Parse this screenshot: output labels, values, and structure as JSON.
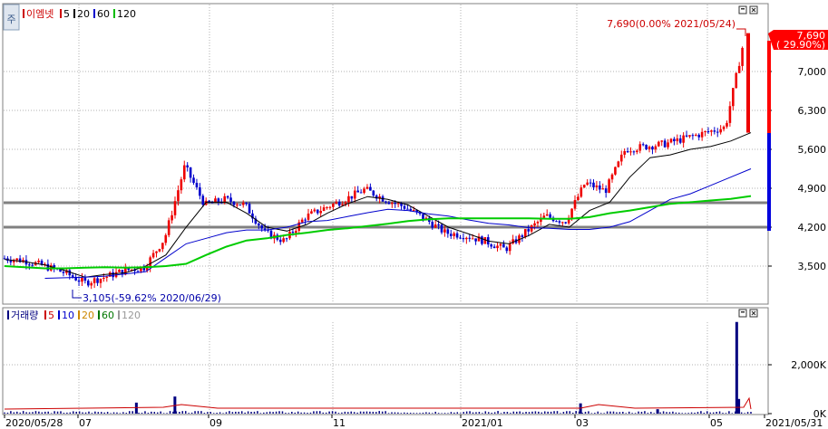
{
  "price_panel": {
    "legend": [
      {
        "label": "이엠넷",
        "color": "#cc0000"
      },
      {
        "label": "5",
        "color": "#cc0000"
      },
      {
        "label": "20",
        "color": "#000000"
      },
      {
        "label": "60",
        "color": "#0000cc"
      },
      {
        "label": "120",
        "color": "#00bb00"
      }
    ],
    "annotation_high": "7,690(0.00% 2021/05/24)",
    "annotation_low": "3,105(-59.62% 2020/06/29)",
    "current_price": "7,690",
    "current_change": "( 29.90%)",
    "y_ticks": [
      "7,000",
      "6,300",
      "5,600",
      "4,900",
      "4,200",
      "3,500"
    ],
    "toggle_icon_label": "주"
  },
  "volume_panel": {
    "legend": [
      {
        "label": "거래량",
        "color": "#000080"
      },
      {
        "label": "5",
        "color": "#cc0000"
      },
      {
        "label": "10",
        "color": "#0000cc"
      },
      {
        "label": "20",
        "color": "#cc8800"
      },
      {
        "label": "60",
        "color": "#007700"
      },
      {
        "label": "120",
        "color": "#999999"
      }
    ],
    "y_ticks": [
      "2,000K",
      "0K"
    ]
  },
  "x_axis": {
    "labels": [
      "2020/05/28",
      "07",
      "09",
      "11",
      "2021/01",
      "03",
      "05",
      "2021/05/31"
    ]
  },
  "chart_data": [
    {
      "type": "candlestick",
      "title": "이엠넷",
      "ylim": [
        3000,
        8000
      ],
      "x_range": [
        "2020/05/28",
        "2021/05/31"
      ],
      "support_resistance_lines": [
        4640,
        4200
      ],
      "series": [
        {
          "name": "5",
          "color": "#cc0000",
          "values": [
            3640,
            3600,
            3500,
            3380,
            3200,
            3300,
            3420,
            3480,
            4000,
            5300,
            4600,
            4700,
            4600,
            4100,
            3950,
            4380,
            4550,
            4700,
            4880,
            4700,
            4560,
            4350,
            4100,
            4050,
            3950,
            3800,
            4100,
            4400,
            4300,
            5000,
            4850,
            5600,
            5650,
            5700,
            5800,
            5900,
            6000,
            7690
          ]
        },
        {
          "name": "20",
          "color": "#000000",
          "values": [
            3620,
            3580,
            3520,
            3420,
            3300,
            3350,
            3380,
            3500,
            3700,
            4200,
            4650,
            4650,
            4450,
            4200,
            4130,
            4250,
            4450,
            4620,
            4750,
            4700,
            4600,
            4400,
            4200,
            4080,
            3950,
            3900,
            4050,
            4250,
            4200,
            4500,
            4650,
            5100,
            5450,
            5500,
            5600,
            5650,
            5750,
            5900
          ]
        },
        {
          "name": "60",
          "color": "#0000cc",
          "values": [
            null,
            null,
            3280,
            3290,
            3300,
            3320,
            3360,
            3400,
            3650,
            3900,
            4000,
            4100,
            4150,
            4150,
            4200,
            4300,
            4320,
            4390,
            4460,
            4520,
            4500,
            4440,
            4400,
            4330,
            4270,
            4240,
            4190,
            4180,
            4160,
            4160,
            4200,
            4300,
            4500,
            4700,
            4800,
            4950,
            5100,
            5250
          ]
        },
        {
          "name": "120",
          "color": "#00cc00",
          "values": [
            3500,
            3480,
            3460,
            3460,
            3470,
            3480,
            3470,
            3480,
            3500,
            3540,
            3700,
            3850,
            3960,
            4000,
            4060,
            4100,
            4150,
            4180,
            4220,
            4260,
            4310,
            4340,
            4360,
            4360,
            4360,
            4360,
            4360,
            4350,
            4350,
            4380,
            4450,
            4500,
            4560,
            4620,
            4650,
            4680,
            4710,
            4760
          ]
        }
      ],
      "annotations": [
        {
          "text": "7,690(0.00% 2021/05/24)",
          "x": "2021/05/24",
          "y": 7690
        },
        {
          "text": "3,105(-59.62% 2020/06/29)",
          "x": "2020/06/29",
          "y": 3105
        }
      ]
    },
    {
      "type": "bar",
      "title": "거래량",
      "ylim": [
        0,
        4000000
      ],
      "spikes": [
        {
          "x": "2020/08/01",
          "value": 450000
        },
        {
          "x": "2020/08/20",
          "value": 700000
        },
        {
          "x": "2021/03/08",
          "value": 420000
        },
        {
          "x": "2021/04/15",
          "value": 180000
        },
        {
          "x": "2021/05/24",
          "value": 3750000
        },
        {
          "x": "2021/05/25",
          "value": 600000
        }
      ]
    }
  ]
}
